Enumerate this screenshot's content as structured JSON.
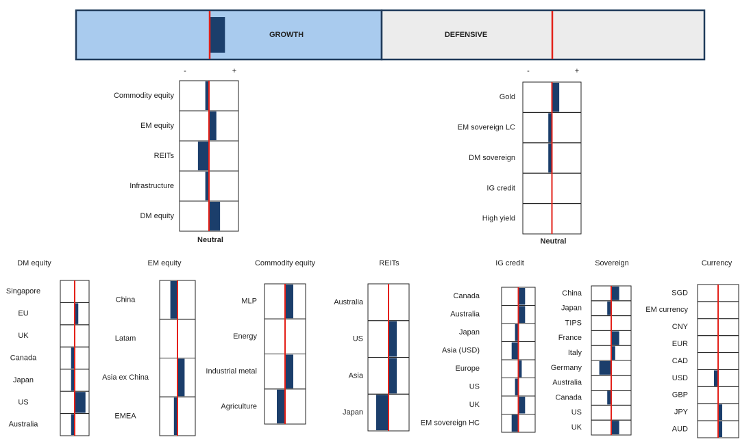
{
  "chart_data": [
    {
      "type": "banner",
      "categories": [
        "GROWTH",
        "DEFENSIVE"
      ],
      "values": [
        4,
        0
      ],
      "xlim": [
        -40,
        40
      ],
      "colors": [
        "#a9cbee",
        "#ececec"
      ]
    },
    {
      "type": "tilt",
      "minus": "-",
      "plus": "+",
      "neutral_label": "Neutral",
      "categories": [
        "Commodity equity",
        "EM equity",
        "REITs",
        "Infrastructure",
        "DM equity"
      ],
      "values": [
        -1,
        2,
        -3,
        -1,
        3
      ],
      "xlim": [
        -8,
        8
      ]
    },
    {
      "type": "tilt",
      "minus": "-",
      "plus": "+",
      "neutral_label": "Neutral",
      "categories": [
        "Gold",
        "EM sovereign LC",
        "DM sovereign",
        "IG credit",
        "High yield"
      ],
      "values": [
        2,
        -1,
        -1,
        0,
        0
      ],
      "xlim": [
        -8,
        8
      ]
    },
    {
      "type": "tilt",
      "title": "DM equity",
      "categories": [
        "Singapore",
        "EU",
        "UK",
        "Canada",
        "Japan",
        "US",
        "Australia"
      ],
      "values": [
        0,
        1,
        0,
        -1,
        -1,
        3,
        -1
      ],
      "xlim": [
        -4,
        4
      ]
    },
    {
      "type": "tilt",
      "title": "EM equity",
      "categories": [
        "China",
        "Latam",
        "Asia ex China",
        "EMEA"
      ],
      "values": [
        -2,
        0,
        2,
        -1
      ],
      "xlim": [
        -5,
        5
      ]
    },
    {
      "type": "tilt",
      "title": "Commodity equity",
      "categories": [
        "MLP",
        "Energy",
        "Industrial metal",
        "Agriculture"
      ],
      "values": [
        2,
        0,
        2,
        -2
      ],
      "xlim": [
        -5,
        5
      ]
    },
    {
      "type": "tilt",
      "title": "REITs",
      "categories": [
        "Australia",
        "US",
        "Asia",
        "Japan"
      ],
      "values": [
        0,
        2,
        2,
        -3
      ],
      "xlim": [
        -5,
        5
      ]
    },
    {
      "type": "tilt",
      "title": "IG credit",
      "categories": [
        "Canada",
        "Australia",
        "Japan",
        "Asia (USD)",
        "Europe",
        "US",
        "UK",
        "EM sovereign HC"
      ],
      "values": [
        2,
        2,
        -1,
        -2,
        1,
        -1,
        2,
        -2
      ],
      "xlim": [
        -5,
        5
      ]
    },
    {
      "type": "tilt",
      "title": "Sovereign",
      "categories": [
        "China",
        "Japan",
        "TIPS",
        "France",
        "Italy",
        "Germany",
        "Australia",
        "Canada",
        "US",
        "UK"
      ],
      "values": [
        2,
        -1,
        0,
        2,
        1,
        -3,
        0,
        -1,
        0,
        2
      ],
      "xlim": [
        -5,
        5
      ]
    },
    {
      "type": "tilt",
      "title": "Currency",
      "categories": [
        "SGD",
        "EM currency",
        "CNY",
        "EUR",
        "CAD",
        "USD",
        "GBP",
        "JPY",
        "AUD"
      ],
      "values": [
        0,
        0,
        0,
        0,
        0,
        -1,
        0,
        1,
        1
      ],
      "xlim": [
        -5,
        5
      ]
    }
  ]
}
